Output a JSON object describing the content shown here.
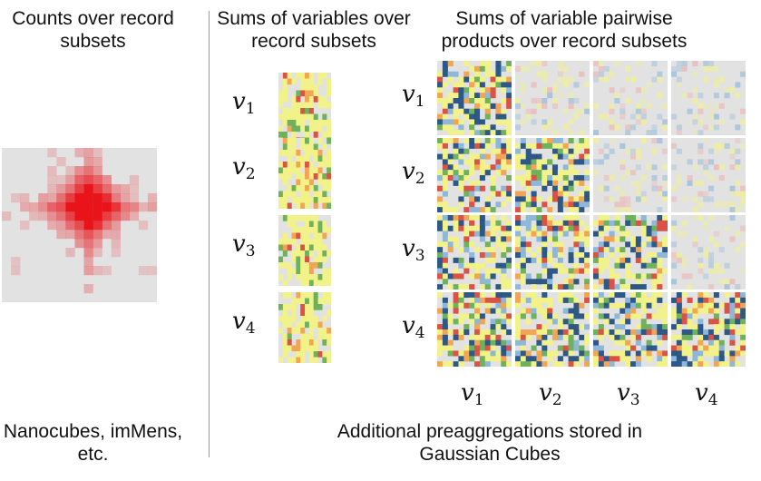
{
  "left": {
    "title": "Counts over record subsets",
    "footer": "Nanocubes, imMens, etc."
  },
  "middle": {
    "title": "Sums of variables over record subsets"
  },
  "right": {
    "title": "Sums of variable pairwise products over record subsets"
  },
  "footer": "Additional preaggregations stored in Gaussian Cubes",
  "variables": [
    {
      "base": "v",
      "sub": "1"
    },
    {
      "base": "v",
      "sub": "2"
    },
    {
      "base": "v",
      "sub": "3"
    },
    {
      "base": "v",
      "sub": "4"
    }
  ],
  "colors": {
    "count_scale": "#e8141a",
    "background": "#e2e2e2",
    "yellow": "#f5f57a",
    "green": "#5aa844",
    "orange": "#f39a3c",
    "red": "#d93a2b",
    "navy": "#0d3f78",
    "lightblue": "#7fb0d8",
    "pink": "#f0a8a8",
    "divider": "#9a9a9a"
  }
}
